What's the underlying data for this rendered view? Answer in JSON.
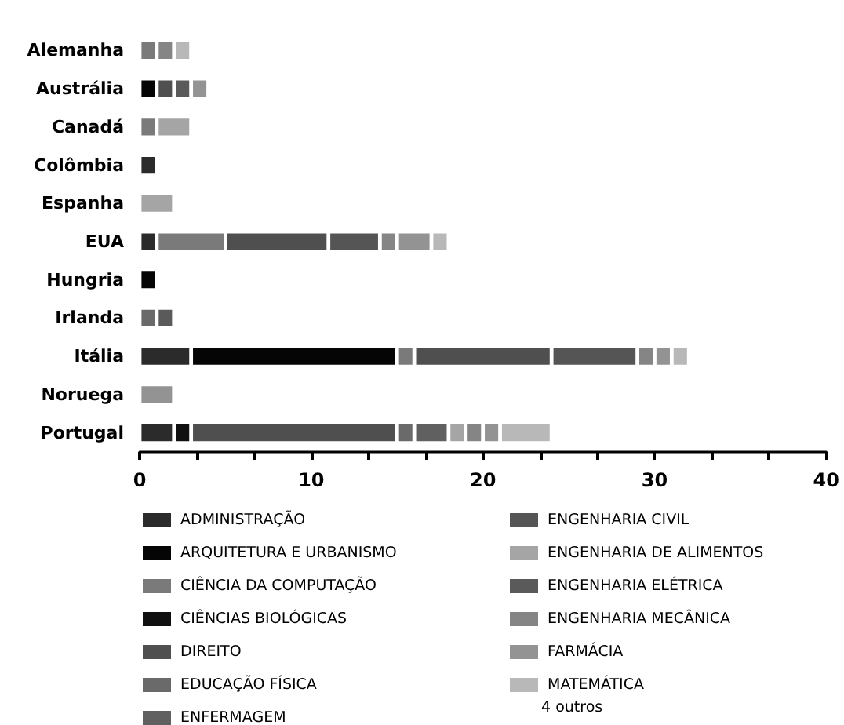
{
  "chart_data": {
    "type": "bar",
    "orientation": "horizontal",
    "stacked": true,
    "legend": "bottom",
    "categories": [
      "Alemanha",
      "Austrália",
      "Canadá",
      "Colômbia",
      "Espanha",
      "EUA",
      "Hungria",
      "Irlanda",
      "Itália",
      "Noruega",
      "Portugal"
    ],
    "xlim": [
      0,
      40
    ],
    "xticks": [
      0,
      {
        "value": 3.33,
        "label": null
      },
      {
        "value": 6.67,
        "label": null
      },
      10,
      {
        "value": 13.33,
        "label": null
      },
      {
        "value": 16.67,
        "label": null
      },
      20,
      {
        "value": 23.33,
        "label": null
      },
      {
        "value": 26.67,
        "label": null
      },
      30,
      {
        "value": 33.33,
        "label": null
      },
      {
        "value": 36.67,
        "label": null
      },
      40
    ],
    "series": [
      {
        "name": "ADMINISTRAÇÃO",
        "color": "#2b2b2b",
        "values": [
          null,
          null,
          null,
          1,
          null,
          1,
          null,
          null,
          3,
          null,
          2
        ]
      },
      {
        "name": "ARQUITETURA E URBANISMO",
        "color": "#050505",
        "values": [
          null,
          1,
          null,
          null,
          null,
          null,
          1,
          null,
          12,
          null,
          null
        ]
      },
      {
        "name": "CIÊNCIA DA COMPUTAÇÃO",
        "color": "#7a7a7a",
        "values": [
          1,
          null,
          1,
          null,
          null,
          4,
          null,
          null,
          1,
          null,
          null
        ]
      },
      {
        "name": "CIÊNCIAS BIOLÓGICAS",
        "color": "#101010",
        "values": [
          null,
          null,
          null,
          null,
          null,
          null,
          null,
          null,
          null,
          null,
          1
        ]
      },
      {
        "name": "DIREITO",
        "color": "#4f4f4f",
        "values": [
          null,
          1,
          null,
          null,
          null,
          6,
          null,
          null,
          8,
          null,
          12
        ]
      },
      {
        "name": "EDUCAÇÃO FÍSICA",
        "color": "#6a6a6a",
        "values": [
          null,
          null,
          null,
          null,
          null,
          null,
          null,
          1,
          null,
          null,
          1
        ]
      },
      {
        "name": "ENFERMAGEM",
        "color": "#606060",
        "values": [
          null,
          null,
          null,
          null,
          null,
          null,
          null,
          null,
          null,
          null,
          2
        ]
      },
      {
        "name": "ENGENHARIA CIVIL",
        "color": "#555555",
        "values": [
          null,
          null,
          null,
          null,
          null,
          3,
          null,
          null,
          5,
          null,
          null
        ]
      },
      {
        "name": "ENGENHARIA DE ALIMENTOS",
        "color": "#a5a5a5",
        "values": [
          null,
          null,
          2,
          null,
          2,
          null,
          null,
          null,
          null,
          null,
          1
        ]
      },
      {
        "name": "ENGENHARIA ELÉTRICA",
        "color": "#5a5a5a",
        "values": [
          null,
          1,
          null,
          null,
          null,
          null,
          null,
          1,
          null,
          null,
          null
        ]
      },
      {
        "name": "ENGENHARIA MECÂNICA",
        "color": "#858585",
        "values": [
          1,
          null,
          null,
          null,
          null,
          1,
          null,
          null,
          1,
          null,
          1
        ]
      },
      {
        "name": "FARMÁCIA",
        "color": "#939393",
        "values": [
          null,
          1,
          null,
          null,
          null,
          2,
          null,
          null,
          1,
          2,
          1
        ]
      },
      {
        "name": "MATEMÁTICA",
        "color": "#b8b8b8",
        "values": [
          1,
          null,
          null,
          null,
          null,
          1,
          null,
          null,
          1,
          null,
          3
        ]
      }
    ],
    "annotations": [
      "4 outros"
    ]
  }
}
